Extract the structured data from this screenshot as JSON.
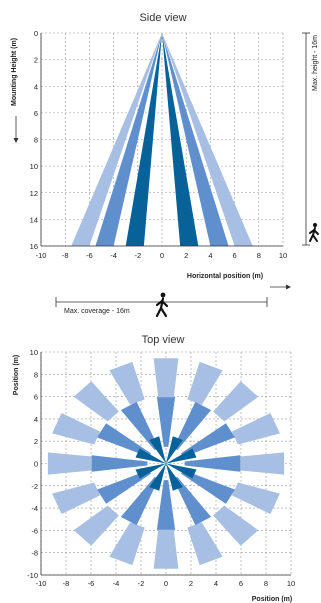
{
  "colors": {
    "light": "#a7bfe3",
    "mid": "#5f8fcc",
    "dark": "#08629a",
    "grid": "#9a9a9a",
    "text": "#222222"
  },
  "side": {
    "title": "Side view",
    "ylabel": "Mounting Height (m)",
    "xlabel": "Horizontal position (m)",
    "max_height_label": "Max. height - 16m",
    "max_coverage_label": "Max. coverage - 16m",
    "xticks": [
      -10,
      -8,
      -6,
      -4,
      -2,
      0,
      2,
      4,
      6,
      8,
      10
    ],
    "yticks": [
      0,
      2,
      4,
      6,
      8,
      10,
      12,
      14,
      16
    ]
  },
  "top": {
    "title": "Top view",
    "ylabel": "Position (m)",
    "xlabel": "Position (m)",
    "xticks": [
      -10,
      -8,
      -6,
      -4,
      -2,
      0,
      2,
      4,
      6,
      8,
      10
    ],
    "yticks": [
      10,
      8,
      6,
      4,
      2,
      0,
      -2,
      -4,
      -6,
      -8,
      -10
    ]
  },
  "chart_data": [
    {
      "type": "area",
      "title": "Side view",
      "xlabel": "Horizontal position (m)",
      "ylabel": "Mounting Height (m)",
      "xlim": [
        -10,
        10
      ],
      "ylim": [
        0,
        16
      ],
      "apex": [
        0,
        0
      ],
      "beams": [
        {
          "tone": "light",
          "x_bottom": [
            -7.5,
            -6.0
          ]
        },
        {
          "tone": "mid",
          "x_bottom": [
            -5.5,
            -4.0
          ]
        },
        {
          "tone": "dark",
          "x_bottom": [
            -3.0,
            -1.5
          ]
        },
        {
          "tone": "dark",
          "x_bottom": [
            1.5,
            3.0
          ]
        },
        {
          "tone": "mid",
          "x_bottom": [
            4.0,
            5.5
          ]
        },
        {
          "tone": "light",
          "x_bottom": [
            6.0,
            7.5
          ]
        }
      ]
    },
    {
      "type": "area",
      "title": "Top view",
      "xlabel": "Position (m)",
      "ylabel": "Position (m)",
      "xlim": [
        -10,
        10
      ],
      "ylim": [
        -10,
        10
      ],
      "rings": [
        {
          "tone": "dark",
          "r0": 0,
          "r1": 2.5,
          "count": 8,
          "width_deg": 20,
          "offset_deg": 22.5
        },
        {
          "tone": "mid",
          "r0": 1.5,
          "r1": 6.0,
          "count": 12,
          "width_deg": 14,
          "offset_deg": 0
        },
        {
          "tone": "light",
          "r0": 6.0,
          "r1": 9.5,
          "count": 16,
          "width_deg": 12,
          "offset_deg": 0
        }
      ]
    }
  ]
}
